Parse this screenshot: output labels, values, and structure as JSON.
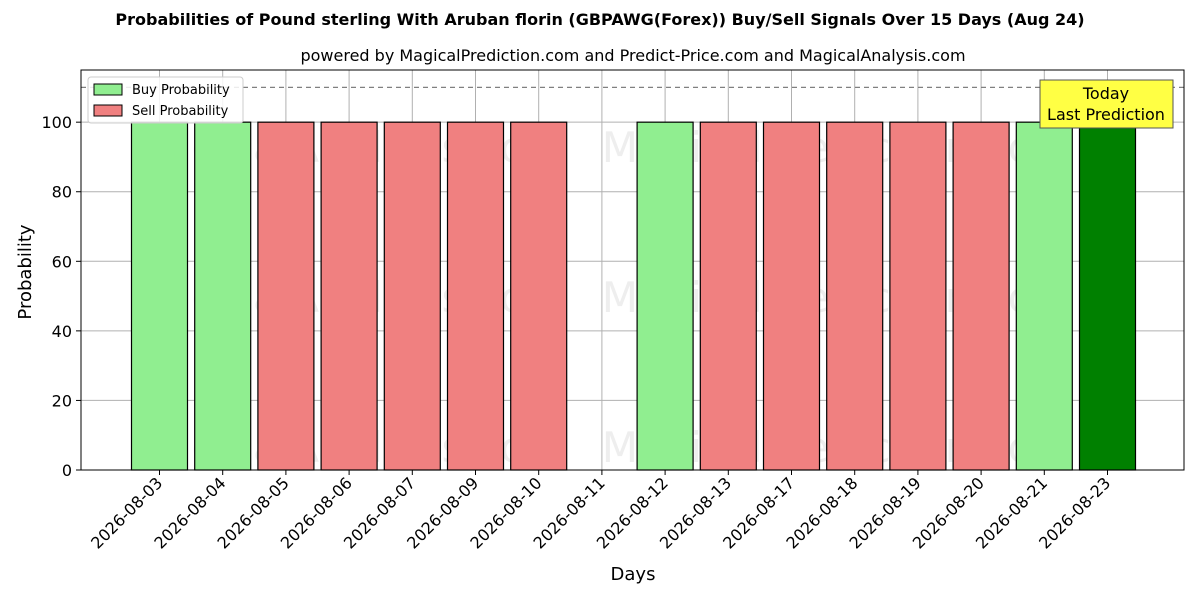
{
  "chart_data": {
    "type": "bar",
    "title": "Probabilities of Pound sterling With Aruban florin (GBPAWG(Forex)) Buy/Sell Signals Over 15 Days (Aug 24)",
    "subtitle": "powered by MagicalPrediction.com and Predict-Price.com and MagicalAnalysis.com",
    "xlabel": "Days",
    "ylabel": "Probability",
    "ylim": [
      0,
      115
    ],
    "yticks": [
      0,
      20,
      40,
      60,
      80,
      100
    ],
    "reference_line": 110,
    "grid": true,
    "legend_position": "top-left",
    "categories": [
      "2026-08-03",
      "2026-08-04",
      "2026-08-05",
      "2026-08-06",
      "2026-08-07",
      "2026-08-09",
      "2026-08-10",
      "2026-08-11",
      "2026-08-12",
      "2026-08-13",
      "2026-08-17",
      "2026-08-18",
      "2026-08-19",
      "2026-08-20",
      "2026-08-21",
      "2026-08-23"
    ],
    "bars": [
      {
        "value": 100,
        "signal": "buy"
      },
      {
        "value": 100,
        "signal": "buy"
      },
      {
        "value": 100,
        "signal": "sell"
      },
      {
        "value": 100,
        "signal": "sell"
      },
      {
        "value": 100,
        "signal": "sell"
      },
      {
        "value": 100,
        "signal": "sell"
      },
      {
        "value": 100,
        "signal": "sell"
      },
      null,
      {
        "value": 100,
        "signal": "buy"
      },
      {
        "value": 100,
        "signal": "sell"
      },
      {
        "value": 100,
        "signal": "sell"
      },
      {
        "value": 100,
        "signal": "sell"
      },
      {
        "value": 100,
        "signal": "sell"
      },
      {
        "value": 100,
        "signal": "sell"
      },
      {
        "value": 100,
        "signal": "buy"
      },
      {
        "value": 100,
        "signal": "today"
      }
    ],
    "series": [
      {
        "name": "Buy Probability",
        "color": "#90ee90"
      },
      {
        "name": "Sell Probability",
        "color": "#f08080"
      }
    ],
    "today_color": "#008000",
    "annotation": {
      "line1": "Today",
      "line2": "Last Prediction",
      "color": "#ffff44"
    },
    "watermarks": [
      "MagicalAnalysis.com",
      "MagicalPrediction.com"
    ]
  }
}
